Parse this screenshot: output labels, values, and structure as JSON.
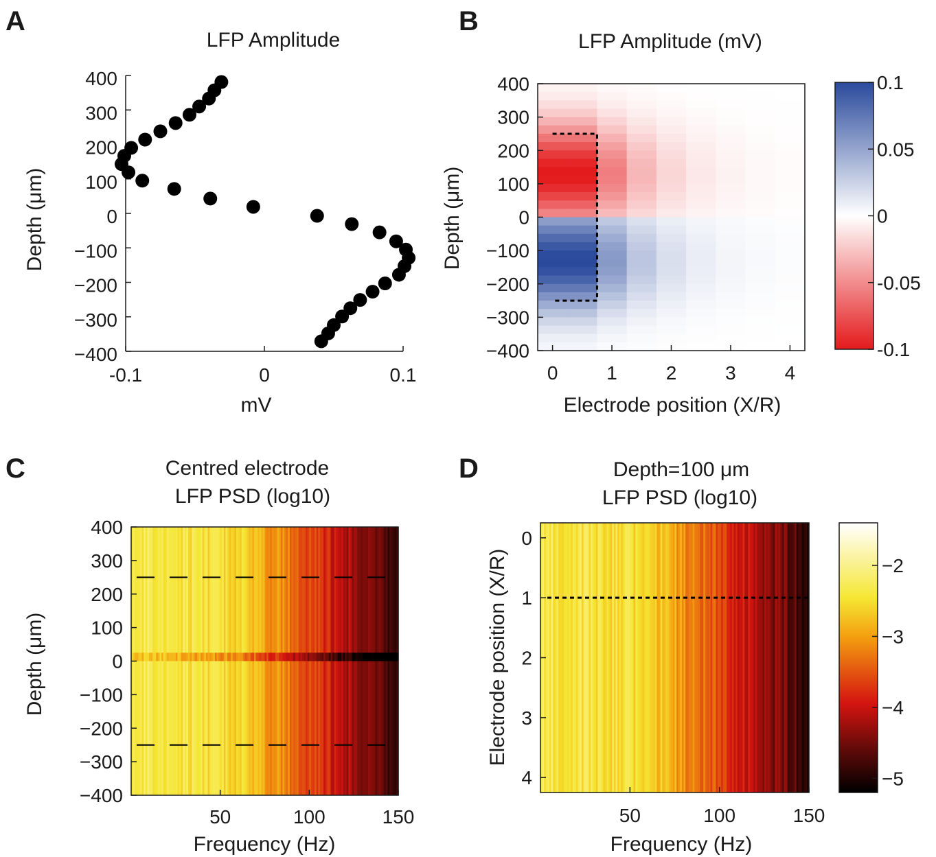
{
  "figure": {
    "panel_labels": [
      "A",
      "B",
      "C",
      "D"
    ]
  },
  "chart_data": [
    {
      "panel": "A",
      "type": "scatter",
      "title": "LFP Amplitude",
      "xlabel": "mV",
      "ylabel": "Depth (μm)",
      "xlim": [
        -0.1,
        0.1
      ],
      "ylim": [
        -400,
        400
      ],
      "xticks": [
        "-0.1",
        "0",
        "0.1"
      ],
      "yticks": [
        "400",
        "300",
        "200",
        "100",
        "0",
        "−100",
        "−200",
        "−300",
        "−400"
      ],
      "marker_color": "#000000",
      "points": [
        {
          "x": -0.031,
          "y": 381
        },
        {
          "x": -0.036,
          "y": 357
        },
        {
          "x": -0.04,
          "y": 333
        },
        {
          "x": -0.047,
          "y": 310
        },
        {
          "x": -0.054,
          "y": 286
        },
        {
          "x": -0.064,
          "y": 262
        },
        {
          "x": -0.075,
          "y": 238
        },
        {
          "x": -0.086,
          "y": 214
        },
        {
          "x": -0.096,
          "y": 190
        },
        {
          "x": -0.101,
          "y": 167
        },
        {
          "x": -0.103,
          "y": 143
        },
        {
          "x": -0.098,
          "y": 119
        },
        {
          "x": -0.088,
          "y": 95
        },
        {
          "x": -0.065,
          "y": 71
        },
        {
          "x": -0.039,
          "y": 43
        },
        {
          "x": -0.008,
          "y": 19
        },
        {
          "x": 0.038,
          "y": -7
        },
        {
          "x": 0.063,
          "y": -31
        },
        {
          "x": 0.083,
          "y": -55
        },
        {
          "x": 0.095,
          "y": -81
        },
        {
          "x": 0.102,
          "y": -105
        },
        {
          "x": 0.104,
          "y": -129
        },
        {
          "x": 0.101,
          "y": -153
        },
        {
          "x": 0.097,
          "y": -178
        },
        {
          "x": 0.087,
          "y": -203
        },
        {
          "x": 0.078,
          "y": -227
        },
        {
          "x": 0.069,
          "y": -251
        },
        {
          "x": 0.062,
          "y": -275
        },
        {
          "x": 0.056,
          "y": -299
        },
        {
          "x": 0.05,
          "y": -324
        },
        {
          "x": 0.046,
          "y": -348
        },
        {
          "x": 0.041,
          "y": -371
        }
      ]
    },
    {
      "panel": "B",
      "type": "heatmap",
      "title": "LFP Amplitude (mV)",
      "xlabel": "Electrode position (X/R)",
      "ylabel": "Depth (μm)",
      "xlim": [
        -0.25,
        4.25
      ],
      "ylim": [
        -400,
        400
      ],
      "xticks": [
        "0",
        "1",
        "2",
        "3",
        "4"
      ],
      "yticks": [
        "400",
        "300",
        "200",
        "100",
        "0",
        "−100",
        "−200",
        "−300",
        "−400"
      ],
      "x": [
        0,
        0.5,
        1,
        1.5,
        2,
        2.5,
        3,
        3.5,
        4
      ],
      "colorbar": {
        "range": [
          -0.1,
          0.1
        ],
        "ticks": [
          "0.1",
          "0.05",
          "0",
          "-0.05",
          "-0.1"
        ],
        "low_color": "#e41a1c",
        "mid_color": "#ffffff",
        "high_color": "#2a4a9c"
      },
      "dashed_region": {
        "x": [
          0,
          0.75
        ],
        "y": [
          -250,
          250
        ]
      }
    },
    {
      "panel": "C",
      "type": "heatmap",
      "title": "Centred electrode",
      "subtitle": "LFP PSD (log10)",
      "xlabel": "Frequency (Hz)",
      "ylabel": "Depth (μm)",
      "xlim": [
        0,
        150
      ],
      "ylim": [
        -400,
        400
      ],
      "xticks": [
        "50",
        "100",
        "150"
      ],
      "yticks": [
        "400",
        "300",
        "200",
        "100",
        "0",
        "−100",
        "−200",
        "−300",
        "−400"
      ],
      "dashed_lines_y": [
        250,
        -250
      ]
    },
    {
      "panel": "D",
      "type": "heatmap",
      "title": "Depth=100 μm",
      "subtitle": "LFP PSD (log10)",
      "xlabel": "Frequency (Hz)",
      "ylabel": "Electrode position (X/R)",
      "xlim": [
        0,
        150
      ],
      "ylim": [
        -0.25,
        4.25
      ],
      "xticks": [
        "50",
        "100",
        "150"
      ],
      "yticks": [
        "0",
        "1",
        "2",
        "3",
        "4"
      ],
      "dashed_line_y": 1,
      "colorbar": {
        "range": [
          -5.2,
          -1.4
        ],
        "ticks": [
          "−2",
          "−3",
          "−4",
          "−5"
        ],
        "colormap": "hot"
      }
    }
  ]
}
